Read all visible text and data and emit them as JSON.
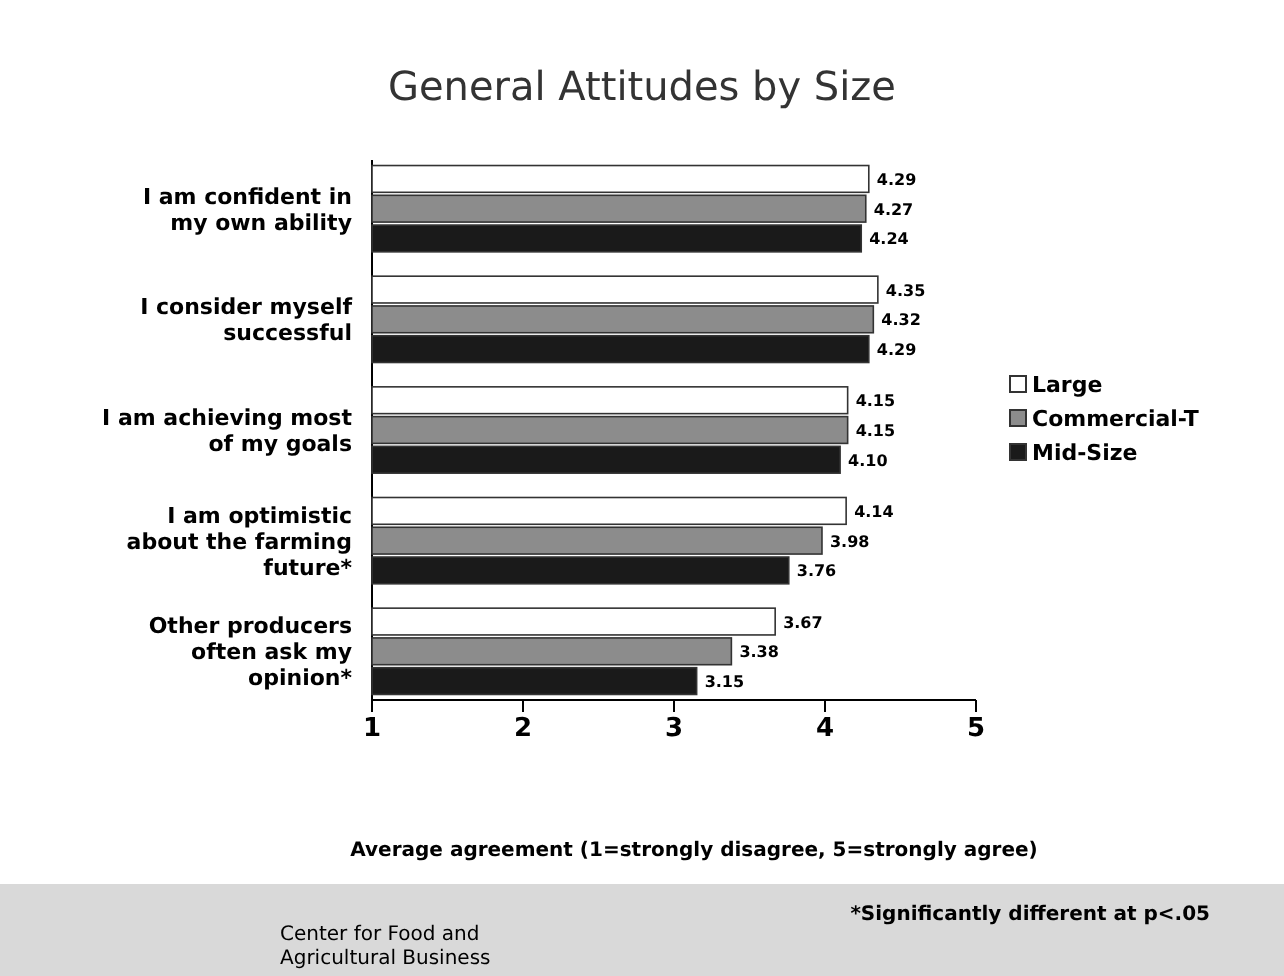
{
  "chart_data": {
    "type": "bar",
    "orientation": "horizontal",
    "title": "General Attitudes by Size",
    "xlabel": "Average agreement (1=strongly disagree, 5=strongly agree)",
    "categories": [
      "I am confident in\nmy own ability",
      "I consider myself\nsuccessful",
      "I am achieving most\nof my goals",
      "I am optimistic\nabout the farming\nfuture*",
      "Other producers\noften ask my\nopinion*"
    ],
    "series": [
      {
        "name": "Large",
        "color": "#ffffff",
        "values": [
          4.29,
          4.35,
          4.15,
          4.14,
          3.67
        ],
        "value_labels": [
          "4.29",
          "4.35",
          "4.15",
          "4.14",
          "3.67"
        ]
      },
      {
        "name": "Commercial-T",
        "color": "#8c8c8c",
        "values": [
          4.27,
          4.32,
          4.15,
          3.98,
          3.38
        ],
        "value_labels": [
          "4.27",
          "4.32",
          "4.15",
          "3.98",
          "3.38"
        ]
      },
      {
        "name": "Mid-Size",
        "color": "#1a1a1a",
        "values": [
          4.24,
          4.29,
          4.1,
          3.76,
          3.15
        ],
        "value_labels": [
          "4.24",
          "4.29",
          "4.10",
          "3.76",
          "3.15"
        ]
      }
    ],
    "xlim": [
      1,
      5
    ],
    "xticks": [
      1,
      2,
      3,
      4,
      5
    ],
    "grid": false,
    "legend": "right",
    "annotations": [
      "*Significantly different at p<.05",
      "Center for Food and\nAgricultural Business"
    ]
  }
}
